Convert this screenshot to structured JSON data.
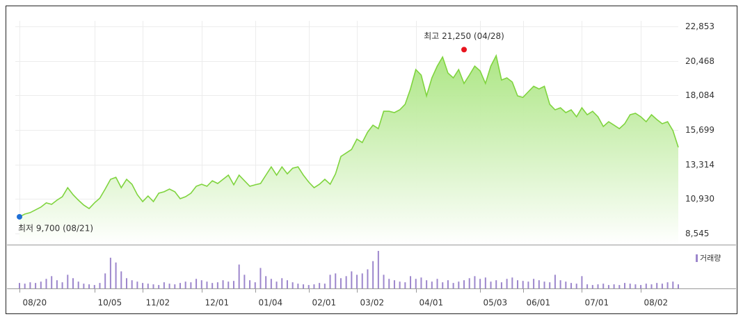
{
  "chart_data": {
    "type": "line",
    "color": "#7fd43e",
    "fill_top": "#a9e57f",
    "grid": true,
    "ylim": [
      8545,
      22853
    ],
    "yticks": [
      {
        "value": 8545,
        "label": "8,545"
      },
      {
        "value": 10930,
        "label": "10,930"
      },
      {
        "value": 13314,
        "label": "13,314"
      },
      {
        "value": 15699,
        "label": "15,699"
      },
      {
        "value": 18084,
        "label": "18,084"
      },
      {
        "value": 20468,
        "label": "20,468"
      },
      {
        "value": 22853,
        "label": "22,853"
      }
    ],
    "categories": [
      "08/20",
      null,
      null,
      null,
      null,
      null,
      null,
      null,
      null,
      null,
      null,
      null,
      null,
      null,
      "10/05",
      null,
      null,
      null,
      null,
      null,
      null,
      null,
      null,
      "11/02",
      null,
      null,
      null,
      null,
      null,
      null,
      null,
      null,
      null,
      null,
      "12/01",
      null,
      null,
      null,
      null,
      null,
      null,
      null,
      null,
      null,
      "01/04",
      null,
      null,
      null,
      null,
      null,
      null,
      null,
      null,
      null,
      "02/01",
      null,
      null,
      null,
      null,
      null,
      null,
      null,
      null,
      "03/02",
      null,
      null,
      null,
      null,
      null,
      null,
      null,
      null,
      null,
      null,
      "04/01",
      null,
      null,
      null,
      null,
      null,
      null,
      null,
      null,
      null,
      null,
      null,
      "05/03",
      null,
      null,
      null,
      null,
      null,
      null,
      null,
      "06/01",
      null,
      null,
      null,
      null,
      null,
      null,
      null,
      null,
      null,
      null,
      "07/01",
      null,
      null,
      null,
      null,
      null,
      null,
      null,
      null,
      null,
      null,
      "08/02",
      null,
      null,
      null,
      null,
      null,
      null,
      null
    ],
    "values": [
      9700,
      9890,
      9990,
      10180,
      10370,
      10660,
      10560,
      10850,
      11090,
      11710,
      11230,
      10850,
      10510,
      10270,
      10660,
      10990,
      11620,
      12290,
      12430,
      11710,
      12290,
      11950,
      11230,
      10750,
      11140,
      10750,
      11330,
      11430,
      11620,
      11430,
      10950,
      11090,
      11330,
      11810,
      11950,
      11810,
      12190,
      12000,
      12290,
      12580,
      11910,
      12580,
      12190,
      11810,
      11910,
      12000,
      12580,
      13150,
      12580,
      13150,
      12670,
      13060,
      13150,
      12580,
      12100,
      11710,
      11950,
      12290,
      11950,
      12670,
      13870,
      14110,
      14350,
      15070,
      14830,
      15550,
      16030,
      15790,
      16990,
      16990,
      16900,
      17090,
      17470,
      18530,
      19870,
      19490,
      18050,
      19300,
      20110,
      20740,
      19630,
      19300,
      19870,
      18910,
      19490,
      20110,
      19780,
      18910,
      20110,
      20830,
      19150,
      19300,
      19010,
      18050,
      17950,
      18340,
      18720,
      18530,
      18720,
      17470,
      17090,
      17230,
      16900,
      17090,
      16610,
      17230,
      16750,
      16990,
      16610,
      15940,
      16270,
      16030,
      15790,
      16130,
      16750,
      16850,
      16610,
      16270,
      16750,
      16420,
      16130,
      16270,
      15650,
      14500
    ],
    "annotations": [
      {
        "text": "최고 21,250 (04/28)",
        "value": 21250,
        "index": 83,
        "color": "#e8141e"
      },
      {
        "text": "최저 9,700 (08/21)",
        "value": 9700,
        "index": 0,
        "color": "#1f6fd6"
      }
    ],
    "volume": {
      "name": "거래량",
      "color": "#9c86cc",
      "values": [
        8,
        7,
        9,
        8,
        10,
        14,
        18,
        12,
        9,
        20,
        15,
        10,
        7,
        6,
        5,
        8,
        22,
        45,
        38,
        25,
        15,
        12,
        10,
        8,
        7,
        6,
        5,
        9,
        7,
        6,
        8,
        10,
        9,
        14,
        12,
        10,
        8,
        9,
        12,
        10,
        11,
        35,
        20,
        12,
        9,
        30,
        18,
        14,
        10,
        15,
        12,
        9,
        7,
        6,
        5,
        6,
        8,
        7,
        20,
        22,
        15,
        18,
        25,
        20,
        22,
        28,
        40,
        55,
        20,
        14,
        12,
        10,
        9,
        18,
        14,
        16,
        12,
        10,
        14,
        9,
        12,
        8,
        10,
        12,
        15,
        18,
        14,
        16,
        10,
        12,
        9,
        14,
        16,
        12,
        11,
        10,
        14,
        12,
        10,
        9,
        20,
        12,
        10,
        8,
        7,
        18,
        6,
        5,
        6,
        7,
        5,
        6,
        5,
        8,
        7,
        6,
        5,
        7,
        6,
        8,
        7,
        9,
        10,
        6
      ]
    }
  }
}
